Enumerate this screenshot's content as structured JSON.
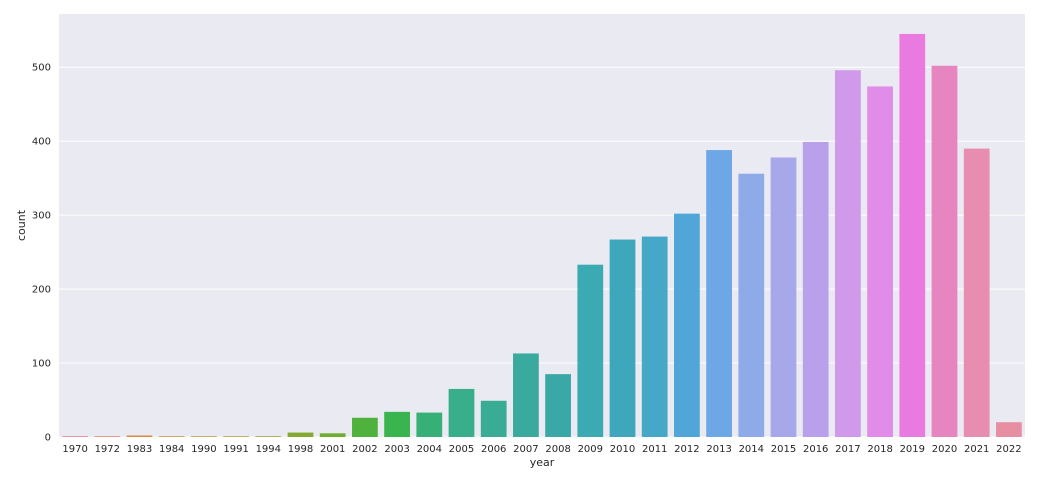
{
  "chart_data": {
    "type": "bar",
    "title": "",
    "xlabel": "year",
    "ylabel": "count",
    "categories": [
      "1970",
      "1972",
      "1983",
      "1984",
      "1990",
      "1991",
      "1994",
      "1998",
      "2001",
      "2002",
      "2003",
      "2004",
      "2005",
      "2006",
      "2007",
      "2008",
      "2009",
      "2010",
      "2011",
      "2012",
      "2013",
      "2014",
      "2015",
      "2016",
      "2017",
      "2018",
      "2019",
      "2020",
      "2021",
      "2022"
    ],
    "values": [
      1,
      1,
      2,
      1,
      1,
      1,
      1,
      6,
      5,
      26,
      34,
      33,
      65,
      49,
      113,
      85,
      233,
      267,
      271,
      302,
      388,
      356,
      378,
      399,
      496,
      474,
      545,
      502,
      390,
      20
    ],
    "ylim": [
      0,
      572
    ],
    "yticks": [
      0,
      100,
      200,
      300,
      400,
      500
    ],
    "grid": true,
    "background_color": "#eaeaf2",
    "grid_color": "#ffffff",
    "colors": [
      "#f0767e",
      "#ec7b5f",
      "#d98938",
      "#c99230",
      "#b89a31",
      "#a8a031",
      "#97a431",
      "#85aa31",
      "#6fae30",
      "#4fb23c",
      "#39b44e",
      "#36b076",
      "#38ae8b",
      "#39ac96",
      "#3aaa9f",
      "#3ba8a8",
      "#3caab2",
      "#3fa7bc",
      "#44a8c6",
      "#4fa6d7",
      "#6ea7e5",
      "#8eaae8",
      "#a6a8ea",
      "#b8a1ea",
      "#d099e9",
      "#e08ce8",
      "#e87ae0",
      "#e685bf",
      "#e78daf",
      "#e88ea3"
    ]
  }
}
